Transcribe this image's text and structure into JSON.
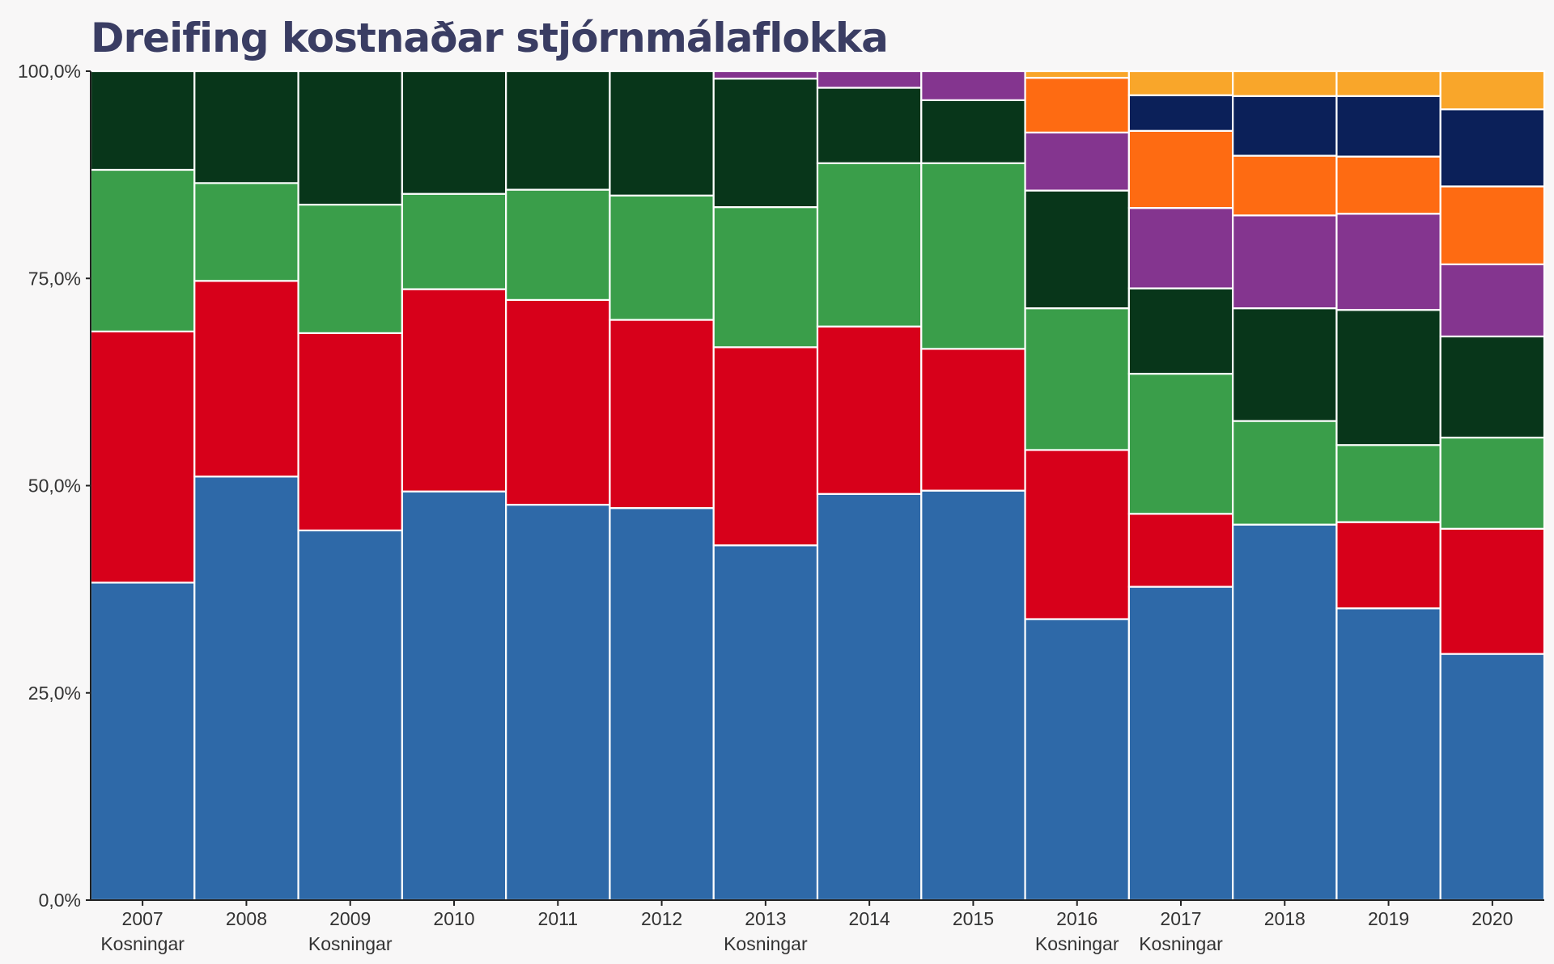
{
  "chart_data": {
    "type": "bar",
    "stacked": "percent",
    "title": "Dreifing kostnaðar stjórnmálaflokka",
    "xlabel": "",
    "ylabel": "",
    "ylim": [
      0,
      100
    ],
    "y_ticks": [
      "0,0%",
      "25,0%",
      "50,0%",
      "75,0%",
      "100,0%"
    ],
    "categories": [
      "2007",
      "2008",
      "2009",
      "2010",
      "2011",
      "2012",
      "2013",
      "2014",
      "2015",
      "2016",
      "2017",
      "2018",
      "2019",
      "2020"
    ],
    "category_sublabels": [
      "Kosningar",
      "",
      "Kosningar",
      "",
      "",
      "",
      "Kosningar",
      "",
      "",
      "Kosningar",
      "Kosningar",
      "",
      "",
      ""
    ],
    "legend": "none",
    "grid": false,
    "series": [
      {
        "color": "#2e69a8",
        "values": [
          38.3,
          51.1,
          44.6,
          49.3,
          47.7,
          47.3,
          42.8,
          49.0,
          49.4,
          33.9,
          37.8,
          45.3,
          35.2,
          29.7
        ]
      },
      {
        "color": "#d7001a",
        "values": [
          30.3,
          23.6,
          23.8,
          24.4,
          24.7,
          22.7,
          23.9,
          20.2,
          17.1,
          20.4,
          8.8,
          0,
          10.4,
          15.1
        ]
      },
      {
        "color": "#3a9e4a",
        "values": [
          19.5,
          11.8,
          15.5,
          11.5,
          13.3,
          15.0,
          16.9,
          19.7,
          22.4,
          17.1,
          16.9,
          12.5,
          9.3,
          11.0
        ]
      },
      {
        "color": "#08361a",
        "values": [
          11.9,
          13.5,
          16.1,
          14.8,
          14.3,
          15.0,
          15.5,
          9.1,
          7.6,
          14.2,
          10.3,
          13.6,
          16.3,
          12.2
        ]
      },
      {
        "color": "#84358f",
        "values": [
          0,
          0,
          0,
          0,
          0,
          0,
          0.9,
          2.0,
          3.5,
          7.0,
          9.7,
          11.2,
          11.6,
          8.7
        ]
      },
      {
        "color": "#fe6b12",
        "values": [
          0,
          0,
          0,
          0,
          0,
          0,
          0,
          0,
          0,
          6.6,
          9.3,
          7.2,
          6.9,
          9.4
        ]
      },
      {
        "color": "#0b2059",
        "values": [
          0,
          0,
          0,
          0,
          0,
          0,
          0,
          0,
          0,
          0,
          4.3,
          7.2,
          7.3,
          9.3
        ]
      },
      {
        "color": "#f9a62a",
        "values": [
          0,
          0,
          0,
          0,
          0,
          0,
          0,
          0,
          0,
          0.8,
          2.9,
          3.0,
          3.0,
          4.6
        ]
      }
    ]
  }
}
